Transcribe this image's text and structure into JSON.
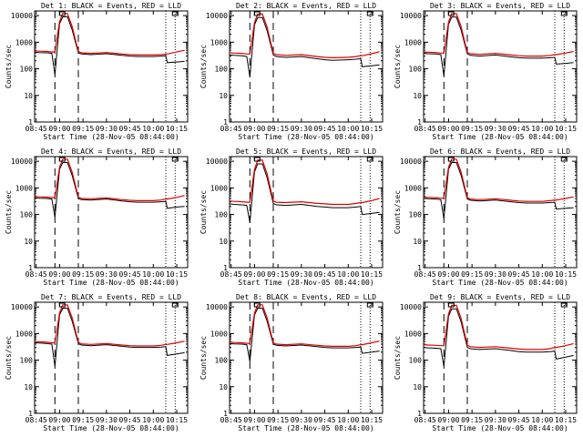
{
  "figure": {
    "xlabel": "Start Time (28-Nov-05 08:44:00)",
    "ylabel": "Counts/sec"
  },
  "colors": {
    "events": "#000000",
    "lld": "#e00000",
    "background": "#ffffff"
  },
  "chart_data": [
    {
      "type": "line",
      "title": "Det 1: BLACK = Events, RED = LLD",
      "xlabel": "Start Time (28-Nov-05 08:44:00)",
      "ylabel": "Counts/sec",
      "x_ticks": [
        "08:45",
        "09:00",
        "09:15",
        "09:30",
        "09:45",
        "10:00",
        "10:15"
      ],
      "y_ticks": [
        "1",
        "10",
        "100",
        "1000",
        "10000"
      ],
      "yscale": "log",
      "ylim": [
        1,
        15000
      ],
      "x": [
        "08:44",
        "08:47",
        "08:52",
        "08:55",
        "08:57",
        "09:00",
        "09:02",
        "09:05",
        "09:08",
        "09:12",
        "09:14",
        "09:20",
        "09:30",
        "09:40",
        "09:45",
        "09:50",
        "10:00",
        "10:05",
        "10:08",
        "10:09",
        "10:15",
        "10:20"
      ],
      "series": [
        {
          "name": "Events",
          "values": [
            420,
            410,
            400,
            380,
            60,
            5000,
            9000,
            9000,
            3000,
            400,
            360,
            340,
            370,
            320,
            300,
            290,
            290,
            300,
            310,
            170,
            180,
            190
          ]
        },
        {
          "name": "LLD",
          "values": [
            470,
            460,
            450,
            430,
            430,
            6000,
            12000,
            12000,
            4000,
            450,
            400,
            380,
            410,
            360,
            340,
            330,
            330,
            340,
            360,
            360,
            430,
            500
          ]
        }
      ],
      "markers_dashed": [
        "08:57",
        "09:12"
      ],
      "markers_dotted": [
        "10:08",
        "10:14"
      ]
    },
    {
      "type": "line",
      "title": "Det 2: BLACK = Events, RED = LLD",
      "xlabel": "Start Time (28-Nov-05 08:44:00)",
      "ylabel": "Counts/sec",
      "x_ticks": [
        "08:45",
        "09:00",
        "09:15",
        "09:30",
        "09:45",
        "10:00",
        "10:15"
      ],
      "y_ticks": [
        "1",
        "10",
        "100",
        "1000",
        "10000"
      ],
      "yscale": "log",
      "ylim": [
        1,
        15000
      ],
      "x": [
        "08:44",
        "08:47",
        "08:52",
        "08:55",
        "08:57",
        "09:00",
        "09:02",
        "09:05",
        "09:08",
        "09:12",
        "09:14",
        "09:20",
        "09:30",
        "09:40",
        "09:45",
        "09:50",
        "10:00",
        "10:05",
        "10:08",
        "10:09",
        "10:15",
        "10:20"
      ],
      "series": [
        {
          "name": "Events",
          "values": [
            330,
            320,
            310,
            290,
            50,
            4500,
            8500,
            8500,
            2800,
            330,
            290,
            270,
            290,
            240,
            220,
            210,
            220,
            230,
            240,
            120,
            130,
            140
          ]
        },
        {
          "name": "LLD",
          "values": [
            400,
            390,
            380,
            360,
            360,
            5500,
            11500,
            11500,
            3800,
            380,
            340,
            320,
            340,
            290,
            270,
            260,
            270,
            290,
            310,
            310,
            370,
            440
          ]
        }
      ],
      "markers_dashed": [
        "08:57",
        "09:12"
      ],
      "markers_dotted": [
        "10:08",
        "10:14"
      ]
    },
    {
      "type": "line",
      "title": "Det 3: BLACK = Events, RED = LLD",
      "xlabel": "Start Time (28-Nov-05 08:44:00)",
      "ylabel": "Counts/sec",
      "x_ticks": [
        "08:45",
        "09:00",
        "09:15",
        "09:30",
        "09:45",
        "10:00",
        "10:15"
      ],
      "y_ticks": [
        "1",
        "10",
        "100",
        "1000",
        "10000"
      ],
      "yscale": "log",
      "ylim": [
        1,
        15000
      ],
      "x": [
        "08:44",
        "08:47",
        "08:52",
        "08:55",
        "08:57",
        "09:00",
        "09:02",
        "09:05",
        "09:08",
        "09:12",
        "09:14",
        "09:20",
        "09:30",
        "09:40",
        "09:45",
        "09:50",
        "10:00",
        "10:05",
        "10:08",
        "10:09",
        "10:15",
        "10:20"
      ],
      "series": [
        {
          "name": "Events",
          "values": [
            380,
            370,
            360,
            340,
            55,
            4800,
            8800,
            8800,
            2900,
            360,
            320,
            300,
            330,
            280,
            260,
            250,
            250,
            260,
            270,
            150,
            160,
            170
          ]
        },
        {
          "name": "LLD",
          "values": [
            430,
            420,
            410,
            390,
            390,
            5800,
            11800,
            11800,
            3900,
            410,
            370,
            350,
            380,
            330,
            310,
            300,
            300,
            320,
            340,
            340,
            390,
            450
          ]
        }
      ],
      "markers_dashed": [
        "08:57",
        "09:12"
      ],
      "markers_dotted": [
        "10:08",
        "10:14"
      ]
    },
    {
      "type": "line",
      "title": "Det 4: BLACK = Events, RED = LLD",
      "xlabel": "Start Time (28-Nov-05 08:44:00)",
      "ylabel": "Counts/sec",
      "x_ticks": [
        "08:45",
        "09:00",
        "09:15",
        "09:30",
        "09:45",
        "10:00",
        "10:15"
      ],
      "y_ticks": [
        "1",
        "10",
        "100",
        "1000",
        "10000"
      ],
      "yscale": "log",
      "ylim": [
        1,
        15000
      ],
      "x": [
        "08:44",
        "08:47",
        "08:52",
        "08:55",
        "08:57",
        "09:00",
        "09:02",
        "09:05",
        "09:08",
        "09:12",
        "09:14",
        "09:20",
        "09:30",
        "09:40",
        "09:45",
        "09:50",
        "10:00",
        "10:05",
        "10:08",
        "10:09",
        "10:15",
        "10:20"
      ],
      "series": [
        {
          "name": "Events",
          "values": [
            420,
            410,
            400,
            380,
            80,
            5000,
            9000,
            9000,
            3000,
            400,
            360,
            350,
            380,
            320,
            300,
            290,
            290,
            300,
            310,
            170,
            190,
            200
          ]
        },
        {
          "name": "LLD",
          "values": [
            470,
            460,
            450,
            430,
            430,
            6000,
            12000,
            12000,
            4000,
            450,
            400,
            390,
            420,
            360,
            340,
            330,
            330,
            350,
            380,
            380,
            440,
            520
          ]
        }
      ],
      "markers_dashed": [
        "08:57",
        "09:12"
      ],
      "markers_dotted": [
        "10:08",
        "10:14"
      ]
    },
    {
      "type": "line",
      "title": "Det 5: BLACK = Events, RED = LLD",
      "xlabel": "Start Time (28-Nov-05 08:44:00)",
      "ylabel": "Counts/sec",
      "x_ticks": [
        "08:45",
        "09:00",
        "09:15",
        "09:30",
        "09:45",
        "10:00",
        "10:15"
      ],
      "y_ticks": [
        "1",
        "10",
        "100",
        "1000",
        "10000"
      ],
      "yscale": "log",
      "ylim": [
        1,
        15000
      ],
      "x": [
        "08:44",
        "08:47",
        "08:52",
        "08:55",
        "08:57",
        "09:00",
        "09:02",
        "09:05",
        "09:08",
        "09:12",
        "09:14",
        "09:20",
        "09:30",
        "09:40",
        "09:45",
        "09:50",
        "10:00",
        "10:05",
        "10:08",
        "10:09",
        "10:15",
        "10:20"
      ],
      "series": [
        {
          "name": "Events",
          "values": [
            250,
            240,
            230,
            220,
            50,
            4000,
            8000,
            8000,
            2500,
            260,
            230,
            220,
            240,
            200,
            190,
            180,
            180,
            190,
            200,
            100,
            110,
            120
          ]
        },
        {
          "name": "LLD",
          "values": [
            320,
            310,
            300,
            290,
            290,
            5000,
            11000,
            11000,
            3500,
            320,
            290,
            280,
            300,
            260,
            250,
            240,
            240,
            260,
            280,
            280,
            330,
            400
          ]
        }
      ],
      "markers_dashed": [
        "08:57",
        "09:12"
      ],
      "markers_dotted": [
        "10:08",
        "10:14"
      ]
    },
    {
      "type": "line",
      "title": "Det 6: BLACK = Events, RED = LLD",
      "xlabel": "Start Time (28-Nov-05 08:44:00)",
      "ylabel": "Counts/sec",
      "x_ticks": [
        "08:45",
        "09:00",
        "09:15",
        "09:30",
        "09:45",
        "10:00",
        "10:15"
      ],
      "y_ticks": [
        "1",
        "10",
        "100",
        "1000",
        "10000"
      ],
      "yscale": "log",
      "ylim": [
        1,
        15000
      ],
      "x": [
        "08:44",
        "08:47",
        "08:52",
        "08:55",
        "08:57",
        "09:00",
        "09:02",
        "09:05",
        "09:08",
        "09:12",
        "09:14",
        "09:20",
        "09:30",
        "09:40",
        "09:45",
        "09:50",
        "10:00",
        "10:05",
        "10:08",
        "10:09",
        "10:15",
        "10:20"
      ],
      "series": [
        {
          "name": "Events",
          "values": [
            400,
            390,
            380,
            360,
            70,
            5000,
            9000,
            9000,
            3000,
            380,
            340,
            320,
            350,
            300,
            280,
            270,
            270,
            280,
            290,
            160,
            170,
            180
          ]
        },
        {
          "name": "LLD",
          "values": [
            450,
            440,
            430,
            410,
            410,
            6000,
            12000,
            12000,
            4000,
            430,
            380,
            360,
            390,
            340,
            320,
            310,
            310,
            330,
            350,
            350,
            400,
            460
          ]
        }
      ],
      "markers_dashed": [
        "08:57",
        "09:12"
      ],
      "markers_dotted": [
        "10:08",
        "10:14"
      ]
    },
    {
      "type": "line",
      "title": "Det 7: BLACK = Events, RED = LLD",
      "xlabel": "Start Time (28-Nov-05 08:44:00)",
      "ylabel": "Counts/sec",
      "x_ticks": [
        "08:45",
        "09:00",
        "09:15",
        "09:30",
        "09:45",
        "10:00",
        "10:15"
      ],
      "y_ticks": [
        "1",
        "10",
        "100",
        "1000",
        "10000"
      ],
      "yscale": "log",
      "ylim": [
        1,
        15000
      ],
      "x": [
        "08:44",
        "08:47",
        "08:52",
        "08:55",
        "08:57",
        "09:00",
        "09:02",
        "09:05",
        "09:08",
        "09:12",
        "09:14",
        "09:20",
        "09:30",
        "09:40",
        "09:45",
        "09:50",
        "10:00",
        "10:05",
        "10:08",
        "10:09",
        "10:15",
        "10:20"
      ],
      "series": [
        {
          "name": "Events",
          "values": [
            450,
            440,
            420,
            400,
            60,
            5000,
            9000,
            9000,
            3000,
            420,
            370,
            350,
            380,
            330,
            310,
            300,
            300,
            310,
            320,
            150,
            170,
            190
          ]
        },
        {
          "name": "LLD",
          "values": [
            500,
            490,
            470,
            450,
            450,
            6000,
            12000,
            12000,
            4000,
            470,
            410,
            390,
            420,
            370,
            350,
            340,
            340,
            360,
            390,
            390,
            450,
            520
          ]
        }
      ],
      "markers_dashed": [
        "08:57",
        "09:12"
      ],
      "markers_dotted": [
        "10:08",
        "10:14"
      ]
    },
    {
      "type": "line",
      "title": "Det 8: BLACK = Events, RED = LLD",
      "xlabel": "Start Time (28-Nov-05 08:44:00)",
      "ylabel": "Counts/sec",
      "x_ticks": [
        "08:45",
        "09:00",
        "09:15",
        "09:30",
        "09:45",
        "10:00",
        "10:15"
      ],
      "y_ticks": [
        "1",
        "10",
        "100",
        "1000",
        "10000"
      ],
      "yscale": "log",
      "ylim": [
        1,
        15000
      ],
      "x": [
        "08:44",
        "08:47",
        "08:52",
        "08:55",
        "08:57",
        "09:00",
        "09:02",
        "09:05",
        "09:08",
        "09:12",
        "09:14",
        "09:20",
        "09:30",
        "09:40",
        "09:45",
        "09:50",
        "10:00",
        "10:05",
        "10:08",
        "10:09",
        "10:15",
        "10:20"
      ],
      "series": [
        {
          "name": "Events",
          "values": [
            420,
            410,
            400,
            380,
            90,
            5000,
            9000,
            9000,
            3000,
            400,
            360,
            340,
            370,
            320,
            300,
            290,
            290,
            300,
            310,
            180,
            200,
            220
          ]
        },
        {
          "name": "LLD",
          "values": [
            470,
            460,
            450,
            430,
            430,
            6000,
            12000,
            12000,
            4000,
            450,
            400,
            380,
            410,
            360,
            340,
            330,
            330,
            350,
            380,
            380,
            450,
            520
          ]
        }
      ],
      "markers_dashed": [
        "08:57",
        "09:12"
      ],
      "markers_dotted": [
        "10:08",
        "10:14"
      ]
    },
    {
      "type": "line",
      "title": "Det 9: BLACK = Events, RED = LLD",
      "xlabel": "Start Time (28-Nov-05 08:44:00)",
      "ylabel": "Counts/sec",
      "x_ticks": [
        "08:45",
        "09:00",
        "09:15",
        "09:30",
        "09:45",
        "10:00",
        "10:15"
      ],
      "y_ticks": [
        "1",
        "10",
        "100",
        "1000",
        "10000"
      ],
      "yscale": "log",
      "ylim": [
        1,
        15000
      ],
      "x": [
        "08:44",
        "08:47",
        "08:52",
        "08:55",
        "08:57",
        "09:00",
        "09:02",
        "09:05",
        "09:08",
        "09:12",
        "09:14",
        "09:20",
        "09:30",
        "09:40",
        "09:45",
        "09:50",
        "10:00",
        "10:05",
        "10:08",
        "10:09",
        "10:15",
        "10:20"
      ],
      "series": [
        {
          "name": "Events",
          "values": [
            300,
            290,
            280,
            270,
            60,
            4500,
            8500,
            8500,
            2800,
            300,
            270,
            250,
            270,
            230,
            210,
            200,
            200,
            210,
            220,
            110,
            130,
            150
          ]
        },
        {
          "name": "LLD",
          "values": [
            380,
            370,
            360,
            350,
            350,
            5500,
            11500,
            11500,
            3800,
            360,
            320,
            300,
            320,
            280,
            260,
            250,
            250,
            270,
            300,
            300,
            350,
            420
          ]
        }
      ],
      "markers_dashed": [
        "08:57",
        "09:12"
      ],
      "markers_dotted": [
        "10:08",
        "10:14"
      ]
    }
  ]
}
